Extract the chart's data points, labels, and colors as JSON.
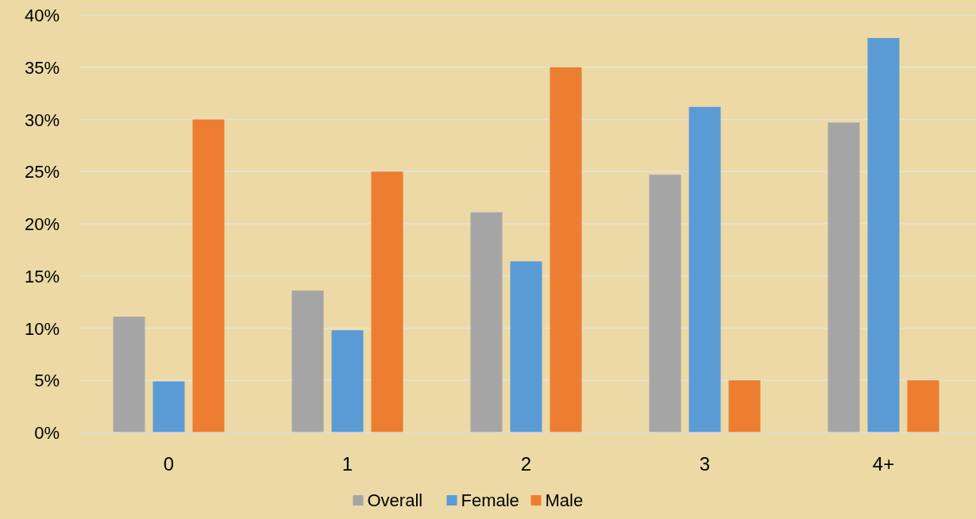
{
  "chart_data": {
    "type": "bar",
    "categories": [
      "0",
      "1",
      "2",
      "3",
      "4+"
    ],
    "series": [
      {
        "name": "Overall",
        "color": "#a5a5a5",
        "values": [
          11.1,
          13.6,
          21.1,
          24.7,
          29.7
        ]
      },
      {
        "name": "Female",
        "color": "#5b9bd5",
        "values": [
          4.9,
          9.8,
          16.4,
          31.2,
          37.8
        ]
      },
      {
        "name": "Male",
        "color": "#ed7d31",
        "values": [
          30,
          25,
          35,
          5,
          5
        ]
      }
    ],
    "ylim": [
      0,
      40
    ],
    "yticks": [
      {
        "value": 0,
        "label": "0%"
      },
      {
        "value": 5,
        "label": "5%"
      },
      {
        "value": 10,
        "label": "10%"
      },
      {
        "value": 15,
        "label": "15%"
      },
      {
        "value": 20,
        "label": "20%"
      },
      {
        "value": 25,
        "label": "25%"
      },
      {
        "value": 30,
        "label": "30%"
      },
      {
        "value": 35,
        "label": "35%"
      },
      {
        "value": 40,
        "label": "40%"
      }
    ],
    "grid": "y",
    "legend": "bottom"
  }
}
